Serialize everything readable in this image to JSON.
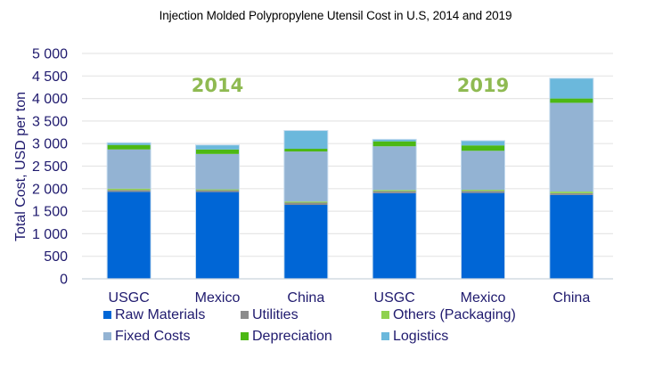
{
  "chart_data": {
    "type": "bar",
    "stacked": true,
    "title": "Injection Molded Polypropylene Utensil Cost in U.S, 2014 and 2019",
    "xlabel": "",
    "ylabel": "Total Cost, USD per ton",
    "ylim": [
      0,
      5000
    ],
    "yticks": [
      0,
      500,
      1000,
      1500,
      2000,
      2500,
      3000,
      3500,
      4000,
      4500,
      5000
    ],
    "ytick_labels": [
      "0",
      "500",
      "1 000",
      "1 500",
      "2 000",
      "2 500",
      "3 000",
      "3 500",
      "4 000",
      "4 500",
      "5 000"
    ],
    "grid": true,
    "categories": [
      "USGC",
      "Mexico",
      "China",
      "USGC",
      "Mexico",
      "China"
    ],
    "annotations": [
      {
        "text": "2014",
        "over_categories": [
          0,
          1,
          2
        ]
      },
      {
        "text": "2019",
        "over_categories": [
          3,
          4,
          5
        ]
      }
    ],
    "series": [
      {
        "name": "Raw Materials",
        "color": "#0066d6",
        "values": [
          1930,
          1925,
          1640,
          1900,
          1905,
          1860
        ]
      },
      {
        "name": "Utilities",
        "color": "#8c8c8c",
        "values": [
          40,
          40,
          50,
          45,
          45,
          40
        ]
      },
      {
        "name": "Others (Packaging)",
        "color": "#8fd14f",
        "values": [
          30,
          20,
          25,
          25,
          25,
          35
        ]
      },
      {
        "name": "Fixed Costs",
        "color": "#93b3d3",
        "values": [
          870,
          785,
          1110,
          970,
          865,
          1970
        ]
      },
      {
        "name": "Depreciation",
        "color": "#4cb814",
        "values": [
          100,
          100,
          60,
          110,
          120,
          95
        ]
      },
      {
        "name": "Logistics",
        "color": "#6bb8dc",
        "values": [
          50,
          100,
          405,
          45,
          105,
          450
        ]
      }
    ],
    "legend": {
      "placement": "bottom",
      "order": [
        "Raw Materials",
        "Utilities",
        "Others (Packaging)",
        "Fixed Costs",
        "Depreciation",
        "Logistics"
      ]
    }
  }
}
